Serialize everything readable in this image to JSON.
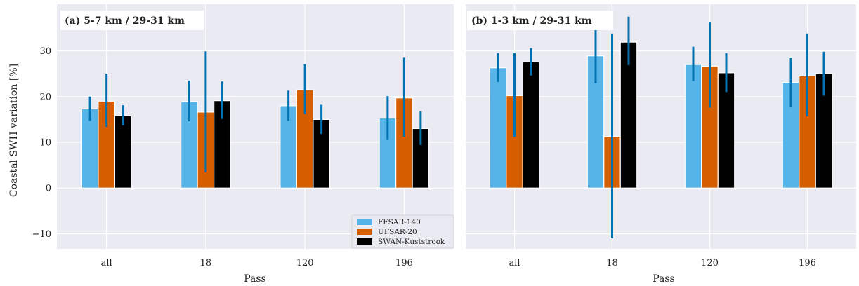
{
  "chart_data": [
    {
      "type": "bar",
      "title": "(a) 5-7 km / 29-31 km",
      "xlabel": "Pass",
      "ylabel": "Coastal SWH variation [%]",
      "categories": [
        "all",
        "18",
        "120",
        "196"
      ],
      "ylim": [
        -13.3,
        40.2
      ],
      "yticks": [
        -10,
        0,
        10,
        20,
        30
      ],
      "ytick_labels": [
        "−10",
        "0",
        "10",
        "20",
        "30"
      ],
      "grid": true,
      "legend": "bottom-right",
      "series": [
        {
          "name": "FFSAR-140",
          "color": "#56b4e9",
          "values": [
            17.3,
            18.9,
            18.0,
            15.3
          ],
          "err_low": [
            14.7,
            14.6,
            14.7,
            10.5
          ],
          "err_high": [
            20.0,
            23.5,
            21.3,
            20.1
          ]
        },
        {
          "name": "UFSAR-20",
          "color": "#d55e00",
          "values": [
            19.0,
            16.6,
            21.5,
            19.7
          ],
          "err_low": [
            13.4,
            3.4,
            16.2,
            11.2
          ],
          "err_high": [
            25.0,
            29.9,
            27.1,
            28.5
          ]
        },
        {
          "name": "SWAN-Kuststrook",
          "color": "#000000",
          "values": [
            15.8,
            19.1,
            15.0,
            13.0
          ],
          "err_low": [
            13.7,
            15.1,
            11.8,
            9.4
          ],
          "err_high": [
            18.1,
            23.3,
            18.2,
            16.8
          ]
        }
      ]
    },
    {
      "type": "bar",
      "title": "(b) 1-3 km / 29-31 km",
      "xlabel": "Pass",
      "ylabel": "",
      "categories": [
        "all",
        "18",
        "120",
        "196"
      ],
      "ylim": [
        -13.3,
        40.2
      ],
      "yticks": [
        -10,
        0,
        10,
        20,
        30
      ],
      "ytick_labels": [
        "",
        "",
        "",
        "",
        ""
      ],
      "grid": true,
      "series": [
        {
          "name": "FFSAR-140",
          "color": "#56b4e9",
          "values": [
            26.3,
            28.9,
            27.0,
            23.1
          ],
          "err_low": [
            23.2,
            22.9,
            23.4,
            17.8
          ],
          "err_high": [
            29.5,
            34.9,
            30.9,
            28.4
          ]
        },
        {
          "name": "UFSAR-20",
          "color": "#d55e00",
          "values": [
            20.2,
            11.3,
            26.6,
            24.5
          ],
          "err_low": [
            11.2,
            -11.0,
            17.6,
            15.7
          ],
          "err_high": [
            29.5,
            33.8,
            36.2,
            33.8
          ]
        },
        {
          "name": "SWAN-Kuststrook",
          "color": "#000000",
          "values": [
            27.6,
            31.9,
            25.2,
            25.0
          ],
          "err_low": [
            24.6,
            26.9,
            21.0,
            20.2
          ],
          "err_high": [
            30.6,
            37.5,
            29.5,
            29.8
          ]
        }
      ]
    }
  ],
  "colors": {
    "plot_background": "#eaeaf2",
    "grid": "#ffffff",
    "errorbar": "#0072b2"
  }
}
